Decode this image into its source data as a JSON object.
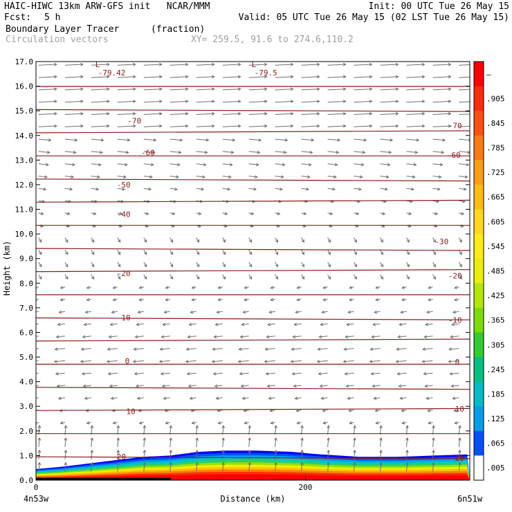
{
  "header": {
    "model_line": "HAIC-HIWC 13km ARW-GFS init   NCAR/MMM",
    "fcst_label": "Fcst:",
    "fcst_value": "5 h",
    "init": "Init: 00 UTC Tue 26 May 15",
    "valid": "Valid: 05 UTC Tue 26 May 15 (02 LST Tue 26 May 15)",
    "field1_name": "Boundary Layer Tracer",
    "field1_units": "(fraction)",
    "field2_name": "Circulation vectors",
    "xy_range": "XY= 259.5, 91.6 to 274.6,110.2"
  },
  "chart_data": {
    "type": "heatmap",
    "title": "Boundary Layer Tracer",
    "units": "(fraction)",
    "xlabel": "Distance (km)",
    "ylabel": "Height (km)",
    "xlim": [
      0,
      322
    ],
    "ylim": [
      0,
      17
    ],
    "x_ticks": [
      0,
      200
    ],
    "x_tick_labels": [
      "0",
      "200"
    ],
    "x_end_labels": [
      "4n53w",
      "6n51w"
    ],
    "y_ticks": [
      0,
      1,
      2,
      3,
      4,
      5,
      6,
      7,
      8,
      9,
      10,
      11,
      12,
      13,
      14,
      15,
      16,
      17
    ],
    "y_tick_labels": [
      "0.0",
      "1.0",
      "2.0",
      "3.0",
      "4.0",
      "5.0",
      "6.0",
      "7.0",
      "8.0",
      "9.0",
      "10.0",
      "11.0",
      "12.0",
      "13.0",
      "14.0",
      "15.0",
      "16.0",
      "17.0"
    ],
    "colorbar": {
      "labels": [
        "–",
        ".905",
        ".845",
        ".785",
        ".725",
        ".665",
        ".605",
        ".545",
        ".485",
        ".425",
        ".365",
        ".305",
        ".245",
        ".185",
        ".125",
        ".065",
        ".005"
      ],
      "colors": [
        "#ff0000",
        "#ff2a0a",
        "#ff5010",
        "#ff7a12",
        "#ff9c14",
        "#ffba14",
        "#ffd818",
        "#ffee10",
        "#e8f000",
        "#b4e800",
        "#7cdc00",
        "#30cc30",
        "#00c080",
        "#00bcc4",
        "#00a0e8",
        "#0050ff",
        "#ffffff"
      ]
    },
    "temperature_contours": [
      {
        "label": "-70",
        "height_km": 14.6
      },
      {
        "label": "-60",
        "height_km": 13.5
      },
      {
        "label": "-50",
        "height_km": 12.2
      },
      {
        "label": "-40",
        "height_km": 10.8
      },
      {
        "label": "-30",
        "height_km": 9.6
      },
      {
        "label": "-20",
        "height_km": 8.4
      },
      {
        "label": "-10",
        "height_km": 6.6
      },
      {
        "label": "0",
        "height_km": 4.8
      },
      {
        "label": "10",
        "height_km": 2.9
      },
      {
        "label": "20",
        "height_km": 0.95
      }
    ],
    "low_labels": [
      {
        "text": "L",
        "value": "-79.42",
        "x_km": 44,
        "y_km": 16.75
      },
      {
        "text": "L",
        "value": "-79.5",
        "x_km": 160,
        "y_km": 16.75
      }
    ],
    "contour_label_positions": [
      {
        "label": "-70",
        "x_km": 68,
        "y_km": 14.6
      },
      {
        "label": "-70",
        "x_km": 306,
        "y_km": 14.4
      },
      {
        "label": "-60",
        "x_km": 78,
        "y_km": 13.3
      },
      {
        "label": "-60",
        "x_km": 305,
        "y_km": 13.2
      },
      {
        "label": "-50",
        "x_km": 60,
        "y_km": 12.0
      },
      {
        "label": "-40",
        "x_km": 60,
        "y_km": 10.8
      },
      {
        "label": "-30",
        "x_km": 296,
        "y_km": 9.7
      },
      {
        "label": "-20",
        "x_km": 60,
        "y_km": 8.4
      },
      {
        "label": "-20",
        "x_km": 306,
        "y_km": 8.3
      },
      {
        "label": "-10",
        "x_km": 60,
        "y_km": 6.6
      },
      {
        "label": "-10",
        "x_km": 306,
        "y_km": 6.5
      },
      {
        "label": "0",
        "x_km": 66,
        "y_km": 4.85
      },
      {
        "label": "0",
        "x_km": 311,
        "y_km": 4.8
      },
      {
        "label": "10",
        "x_km": 67,
        "y_km": 2.8
      },
      {
        "label": "10",
        "x_km": 311,
        "y_km": 2.9
      },
      {
        "label": "20",
        "x_km": 60,
        "y_km": 0.95
      },
      {
        "label": "20",
        "x_km": 311,
        "y_km": 0.9
      }
    ],
    "boundary_layer_top_km": [
      [
        0,
        0.45
      ],
      [
        20,
        0.55
      ],
      [
        50,
        0.75
      ],
      [
        80,
        0.95
      ],
      [
        100,
        1.0
      ],
      [
        120,
        1.15
      ],
      [
        140,
        1.2
      ],
      [
        165,
        1.2
      ],
      [
        190,
        1.15
      ],
      [
        210,
        1.05
      ],
      [
        240,
        0.95
      ],
      [
        270,
        0.95
      ],
      [
        295,
        1.0
      ],
      [
        322,
        1.05
      ]
    ]
  }
}
